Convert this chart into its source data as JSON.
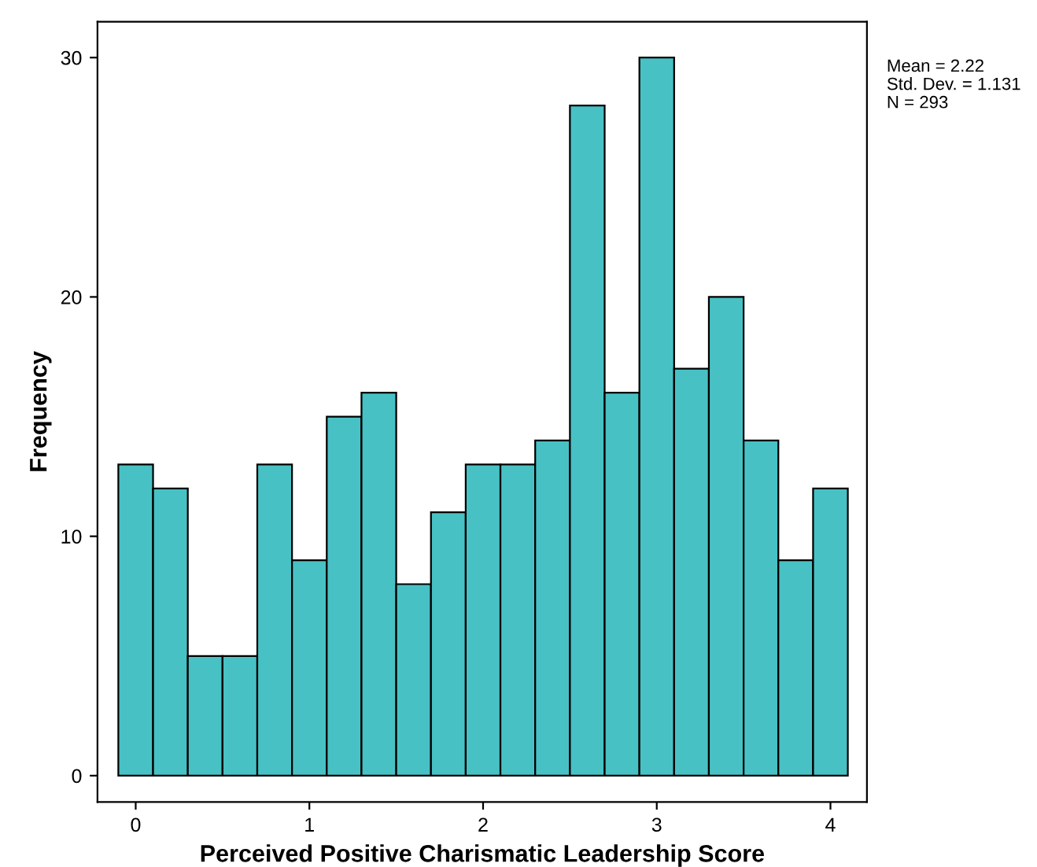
{
  "chart_data": {
    "type": "histogram",
    "xlabel": "Perceived Positive Charismatic Leadership Score",
    "ylabel": "Frequency",
    "bins": [
      -0.1,
      0.1,
      0.3,
      0.5,
      0.7,
      0.9,
      1.1,
      1.3,
      1.5,
      1.7,
      1.9,
      2.1,
      2.3,
      2.5,
      2.7,
      2.9,
      3.1,
      3.3,
      3.5,
      3.7,
      3.9,
      4.1
    ],
    "values": [
      13,
      12,
      5,
      5,
      13,
      9,
      15,
      16,
      8,
      11,
      13,
      13,
      14,
      28,
      16,
      30,
      17,
      20,
      14,
      9,
      12
    ],
    "color": "#48c1c4",
    "xlim": [
      -0.22,
      4.21
    ],
    "xticks": [
      0,
      1,
      2,
      3,
      4
    ],
    "ylim": [
      -1.1,
      31.5
    ],
    "yticks": [
      0,
      10,
      20,
      30
    ],
    "grid": false,
    "annotations": [
      "Mean = 2.22",
      "Std. Dev. = 1.131",
      "N = 293"
    ]
  }
}
